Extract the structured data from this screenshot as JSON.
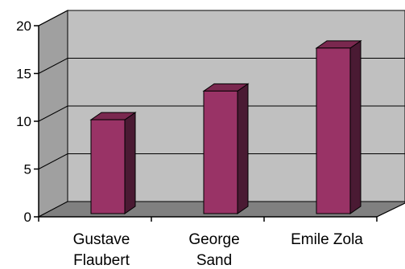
{
  "chart_data": {
    "type": "bar",
    "title": "",
    "xlabel": "",
    "ylabel": "",
    "categories": [
      [
        "Gustave",
        "Flaubert"
      ],
      [
        "George",
        "Sand"
      ],
      [
        "Emile Zola"
      ]
    ],
    "values": [
      11,
      14,
      18.5
    ],
    "ylim": [
      0,
      20
    ],
    "yticks": [
      "0",
      "5",
      "10",
      "15",
      "20"
    ],
    "grid": true,
    "legend": "none",
    "colors": {
      "bar_front": "#993366",
      "bar_side": "#4a1a33",
      "bar_top": "#7a284f",
      "bar_edge": "#000000",
      "back_wall": "#c0c0c0",
      "side_wall": "#a0a0a0",
      "floor": "#808080",
      "gridline": "#000000"
    }
  }
}
